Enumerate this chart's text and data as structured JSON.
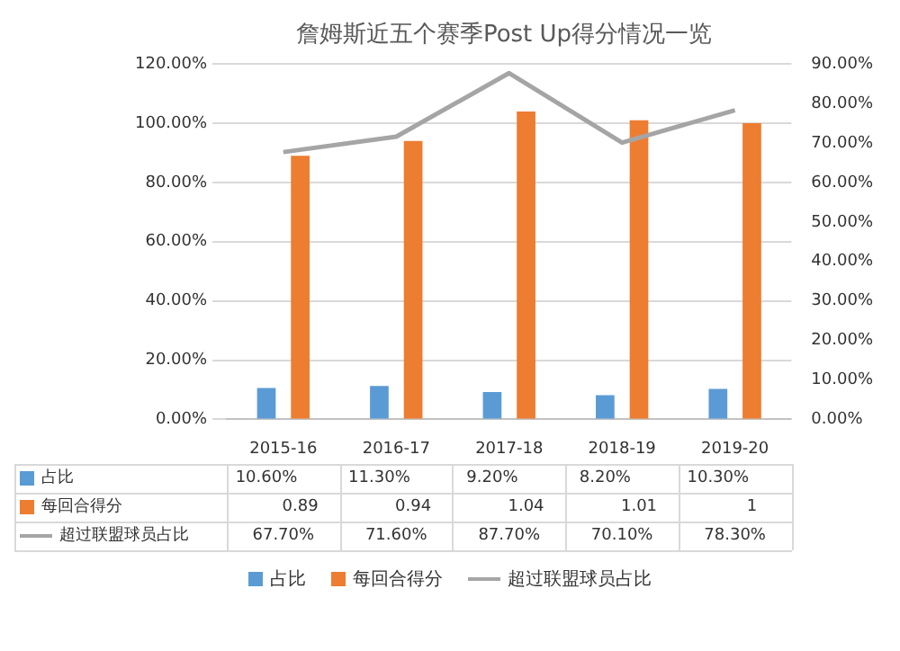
{
  "chart_data": {
    "type": "bar",
    "title": "詹姆斯近五个赛季Post Up得分情况一览",
    "categories": [
      "2015-16",
      "2016-17",
      "2017-18",
      "2018-19",
      "2019-20"
    ],
    "series": [
      {
        "name": "占比",
        "color": "#5b9bd5",
        "values": [
          0.106,
          0.113,
          0.092,
          0.082,
          0.103
        ],
        "value_labels": [
          "10.60%",
          "11.30%",
          "9.20%",
          "8.20%",
          "10.30%"
        ]
      },
      {
        "name": "每回合得分",
        "color": "#ed7d31",
        "values": [
          0.89,
          0.94,
          1.04,
          1.01,
          1
        ],
        "value_labels": [
          "0.89",
          "0.94",
          "1.04",
          "1.01",
          "1"
        ]
      },
      {
        "name": "超过联盟球员占比",
        "type": "line",
        "axis": "y2",
        "color": "#a5a5a5",
        "marker": "none",
        "values": [
          0.677,
          0.716,
          0.877,
          0.701,
          0.783
        ],
        "value_labels": [
          "67.70%",
          "71.60%",
          "87.70%",
          "70.10%",
          "78.30%"
        ]
      }
    ],
    "ylim": [
      0,
      1.2
    ],
    "yticks": [
      {
        "value": 0,
        "label": "0.00%"
      },
      {
        "value": 0.2,
        "label": "20.00%"
      },
      {
        "value": 0.4,
        "label": "40.00%"
      },
      {
        "value": 0.6,
        "label": "60.00%"
      },
      {
        "value": 0.8,
        "label": "80.00%"
      },
      {
        "value": 1,
        "label": "100.00%"
      },
      {
        "value": 1.2,
        "label": "120.00%"
      }
    ],
    "y2lim": [
      0,
      0.9
    ],
    "y2ticks": [
      {
        "value": 0,
        "label": "0.00%"
      },
      {
        "value": 0.1,
        "label": "10.00%"
      },
      {
        "value": 0.2,
        "label": "20.00%"
      },
      {
        "value": 0.3,
        "label": "30.00%"
      },
      {
        "value": 0.4,
        "label": "40.00%"
      },
      {
        "value": 0.5,
        "label": "50.00%"
      },
      {
        "value": 0.6,
        "label": "60.00%"
      },
      {
        "value": 0.7,
        "label": "70.00%"
      },
      {
        "value": 0.8,
        "label": "80.00%"
      },
      {
        "value": 0.9,
        "label": "90.00%"
      }
    ],
    "grid": "y",
    "legend": "bottom"
  }
}
